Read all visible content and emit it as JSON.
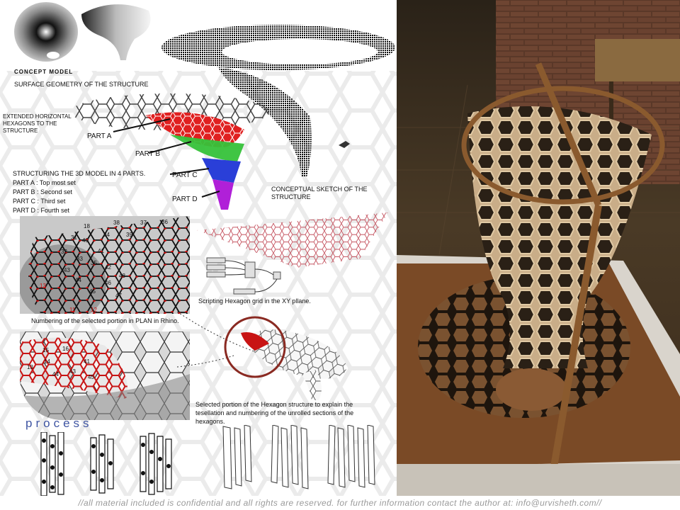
{
  "labels": {
    "concept_model": "CONCEPT MODEL",
    "surface_geometry": "SURFACE GEOMETRY OF THE STRUCTURE",
    "extended_hexagons": [
      "EXTENDED HORIZONTAL",
      "HEXAGONS TO THE",
      "STRUCTURE"
    ],
    "part_a": "PART A",
    "part_b": "PART B",
    "part_c": "PART C",
    "part_d": "PART D",
    "structuring_title": "STRUCTURING THE 3D MODEL IN 4 PARTS.",
    "parts_list": [
      "PART A : Top most set",
      "PART B : Second set",
      "PART C : Third set",
      "PART D : Fourth set"
    ],
    "conceptual_sketch": [
      "CONCEPTUAL SKETCH OF THE",
      "STRUCTURE"
    ],
    "scripting": "Scripting Hexagon grid in the XY pllane.",
    "numbering_plan": "Numbering of the selected portion in PLAN  in Rhino.",
    "selected_portion": [
      "Selected portion of the Hexagon structure to explain the",
      "tesellation and numbering of the unrolled sections of the",
      "hexagons."
    ],
    "process": "process"
  },
  "plan_numbers": [
    "18",
    "38",
    "37",
    "36",
    "31",
    "40",
    "34",
    "39",
    "32",
    "33",
    "41",
    "35",
    "43",
    "42",
    "44",
    "45",
    "46",
    "48",
    "47",
    "13",
    "11",
    "12"
  ],
  "detail_numbers": [
    "15",
    "16",
    "14",
    "13",
    "41",
    "44",
    "43",
    "45"
  ],
  "footer": "//all material included is confidential and all rights are reserved. for further information contact the author at: info@urvisheth.com//",
  "colors": {
    "part_a": "#e02020",
    "part_b": "#36c23a",
    "part_c": "#2a3fd8",
    "part_d": "#b020d8",
    "process": "#3f55a2",
    "wood": "#8a5a2e"
  }
}
